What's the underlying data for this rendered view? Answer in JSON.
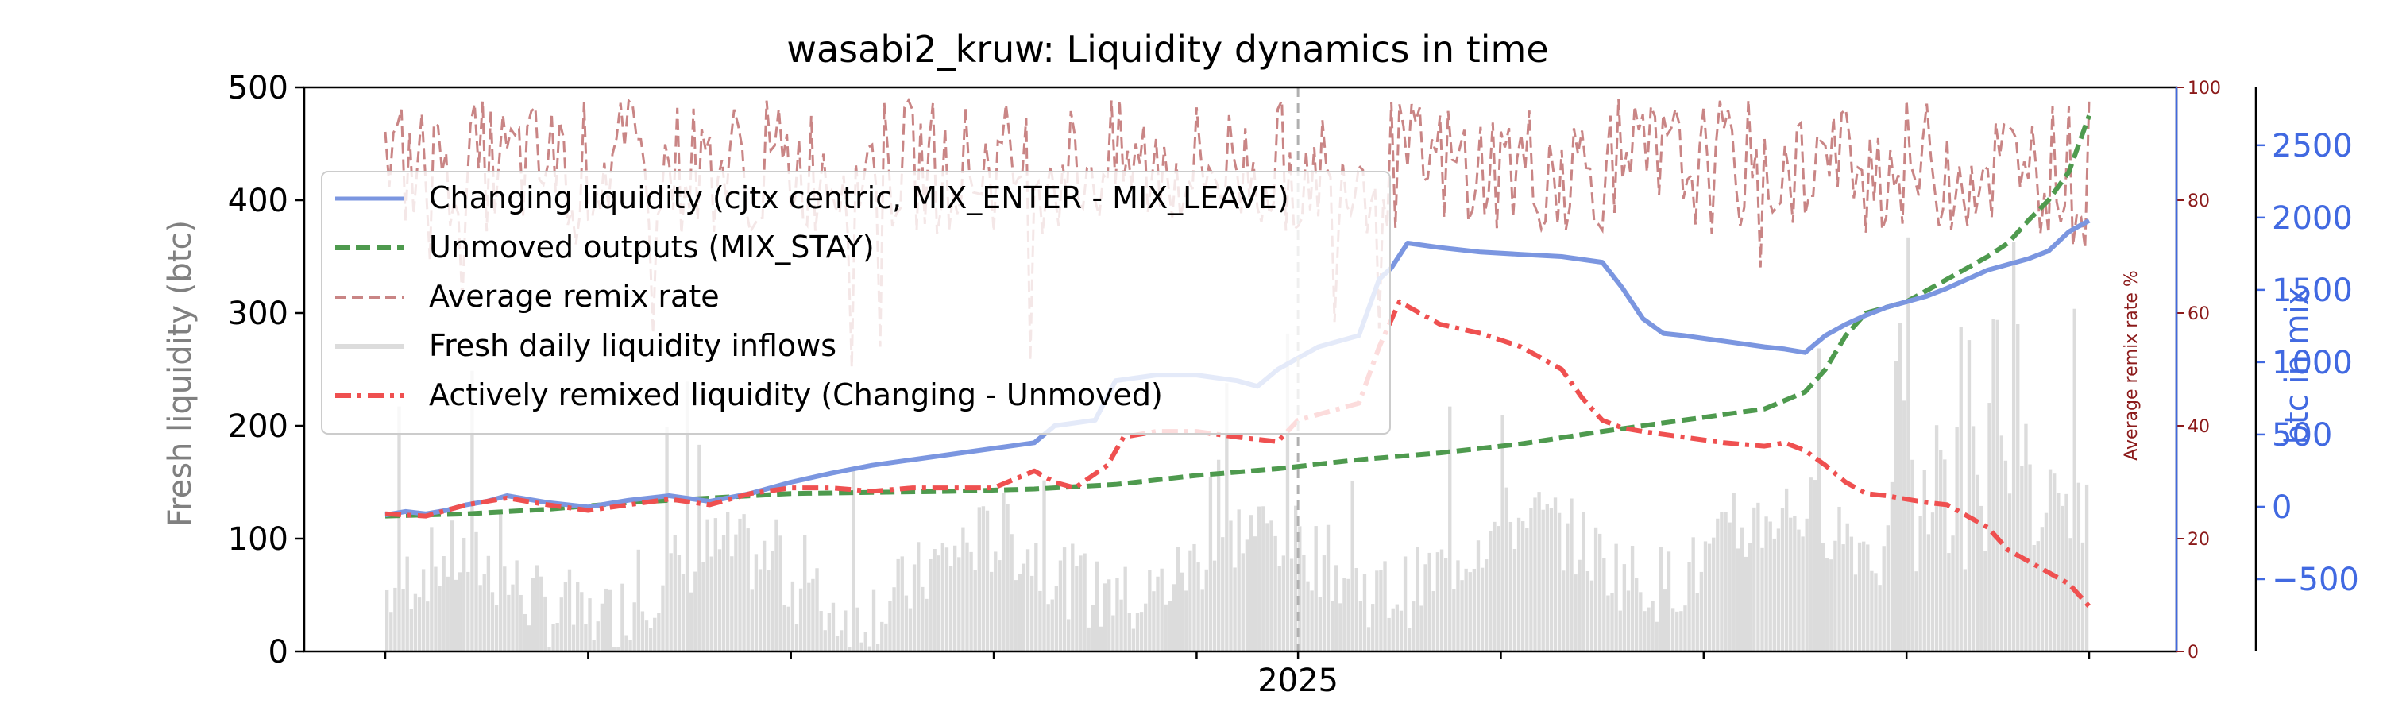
{
  "chart_data": {
    "type": "line",
    "title": "wasabi2_kruw: Liquidity dynamics in time",
    "xlabel": "",
    "x_tick_labels": [
      "2025"
    ],
    "y_left": {
      "label": "Fresh liquidity (btc)",
      "ylim": [
        0,
        500
      ],
      "ticks": [
        0,
        100,
        200,
        300,
        400,
        500
      ]
    },
    "y_right_inner": {
      "label": "Average remix rate %",
      "ylim": [
        0,
        100
      ],
      "ticks": [
        0,
        20,
        40,
        60,
        80,
        100
      ]
    },
    "y_right_outer": {
      "label": "btc in mix",
      "ylim": [
        -1000,
        2900
      ],
      "ticks": [
        -500,
        0,
        500,
        1000,
        1500,
        2000,
        2500
      ]
    },
    "x_range_days": [
      0,
      420
    ],
    "x_2025_day": 225,
    "legend_position": "upper-left",
    "colors": {
      "changing": "#7b96e0",
      "unmoved": "#4e9a4e",
      "remix": "#c98585",
      "fresh": "#dcdcdc",
      "active": "#ef5050",
      "axis_right_outer": "#4169e1",
      "axis_right_inner": "#8b1a1a",
      "axis_left_label": "#808080"
    },
    "series": [
      {
        "name": "Changing liquidity (cjtx centric, MIX_ENTER - MIX_LEAVE)",
        "axis": "y_left",
        "style": "solid",
        "points": [
          [
            0,
            121
          ],
          [
            5,
            124
          ],
          [
            10,
            122
          ],
          [
            15,
            125
          ],
          [
            20,
            130
          ],
          [
            25,
            133
          ],
          [
            30,
            138
          ],
          [
            35,
            135
          ],
          [
            40,
            132
          ],
          [
            50,
            128
          ],
          [
            60,
            134
          ],
          [
            70,
            138
          ],
          [
            80,
            133
          ],
          [
            90,
            140
          ],
          [
            100,
            150
          ],
          [
            110,
            158
          ],
          [
            120,
            165
          ],
          [
            130,
            170
          ],
          [
            140,
            175
          ],
          [
            150,
            180
          ],
          [
            160,
            185
          ],
          [
            165,
            200
          ],
          [
            175,
            205
          ],
          [
            180,
            240
          ],
          [
            190,
            245
          ],
          [
            200,
            245
          ],
          [
            210,
            240
          ],
          [
            215,
            235
          ],
          [
            220,
            250
          ],
          [
            225,
            260
          ],
          [
            230,
            270
          ],
          [
            240,
            280
          ],
          [
            245,
            330
          ],
          [
            248,
            340
          ],
          [
            252,
            362
          ],
          [
            260,
            358
          ],
          [
            270,
            354
          ],
          [
            280,
            352
          ],
          [
            290,
            350
          ],
          [
            300,
            345
          ],
          [
            305,
            322
          ],
          [
            310,
            295
          ],
          [
            315,
            282
          ],
          [
            320,
            280
          ],
          [
            330,
            275
          ],
          [
            340,
            270
          ],
          [
            345,
            268
          ],
          [
            350,
            265
          ],
          [
            355,
            280
          ],
          [
            360,
            290
          ],
          [
            365,
            298
          ],
          [
            370,
            305
          ],
          [
            375,
            310
          ],
          [
            380,
            315
          ],
          [
            385,
            322
          ],
          [
            390,
            330
          ],
          [
            395,
            338
          ],
          [
            400,
            343
          ],
          [
            405,
            348
          ],
          [
            410,
            355
          ],
          [
            415,
            372
          ],
          [
            420,
            382
          ]
        ]
      },
      {
        "name": "Unmoved outputs (MIX_STAY)",
        "axis": "y_left",
        "style": "dashed",
        "points": [
          [
            0,
            120
          ],
          [
            20,
            122
          ],
          [
            40,
            126
          ],
          [
            60,
            132
          ],
          [
            80,
            136
          ],
          [
            100,
            140
          ],
          [
            120,
            141
          ],
          [
            140,
            142
          ],
          [
            160,
            144
          ],
          [
            180,
            148
          ],
          [
            200,
            156
          ],
          [
            220,
            162
          ],
          [
            240,
            170
          ],
          [
            260,
            176
          ],
          [
            280,
            184
          ],
          [
            300,
            195
          ],
          [
            320,
            205
          ],
          [
            340,
            215
          ],
          [
            350,
            230
          ],
          [
            355,
            250
          ],
          [
            360,
            280
          ],
          [
            365,
            300
          ],
          [
            370,
            305
          ],
          [
            375,
            310
          ],
          [
            380,
            320
          ],
          [
            385,
            330
          ],
          [
            390,
            340
          ],
          [
            395,
            350
          ],
          [
            400,
            362
          ],
          [
            405,
            382
          ],
          [
            410,
            400
          ],
          [
            415,
            425
          ],
          [
            420,
            475
          ]
        ]
      },
      {
        "name": "Average remix rate",
        "axis": "y_right_inner",
        "style": "dashed"
      },
      {
        "name": "Fresh daily liquidity inflows",
        "axis": "y_left",
        "style": "bars"
      },
      {
        "name": "Actively remixed liquidity (Changing - Unmoved)",
        "axis": "y_left",
        "style": "dashdot",
        "points": [
          [
            0,
            122
          ],
          [
            10,
            120
          ],
          [
            20,
            130
          ],
          [
            30,
            136
          ],
          [
            40,
            130
          ],
          [
            50,
            125
          ],
          [
            60,
            130
          ],
          [
            70,
            135
          ],
          [
            80,
            130
          ],
          [
            90,
            140
          ],
          [
            100,
            145
          ],
          [
            110,
            145
          ],
          [
            120,
            142
          ],
          [
            130,
            145
          ],
          [
            140,
            145
          ],
          [
            150,
            145
          ],
          [
            160,
            160
          ],
          [
            165,
            150
          ],
          [
            170,
            145
          ],
          [
            178,
            165
          ],
          [
            182,
            190
          ],
          [
            190,
            195
          ],
          [
            200,
            195
          ],
          [
            210,
            190
          ],
          [
            220,
            186
          ],
          [
            225,
            205
          ],
          [
            230,
            210
          ],
          [
            240,
            220
          ],
          [
            245,
            270
          ],
          [
            250,
            310
          ],
          [
            255,
            300
          ],
          [
            260,
            290
          ],
          [
            270,
            282
          ],
          [
            280,
            270
          ],
          [
            290,
            250
          ],
          [
            295,
            225
          ],
          [
            300,
            205
          ],
          [
            305,
            198
          ],
          [
            310,
            195
          ],
          [
            320,
            190
          ],
          [
            330,
            185
          ],
          [
            340,
            182
          ],
          [
            345,
            185
          ],
          [
            350,
            178
          ],
          [
            355,
            165
          ],
          [
            360,
            150
          ],
          [
            365,
            140
          ],
          [
            370,
            138
          ],
          [
            375,
            135
          ],
          [
            380,
            132
          ],
          [
            385,
            130
          ],
          [
            390,
            120
          ],
          [
            395,
            110
          ],
          [
            400,
            90
          ],
          [
            405,
            80
          ],
          [
            410,
            70
          ],
          [
            415,
            60
          ],
          [
            420,
            40
          ]
        ]
      }
    ]
  }
}
